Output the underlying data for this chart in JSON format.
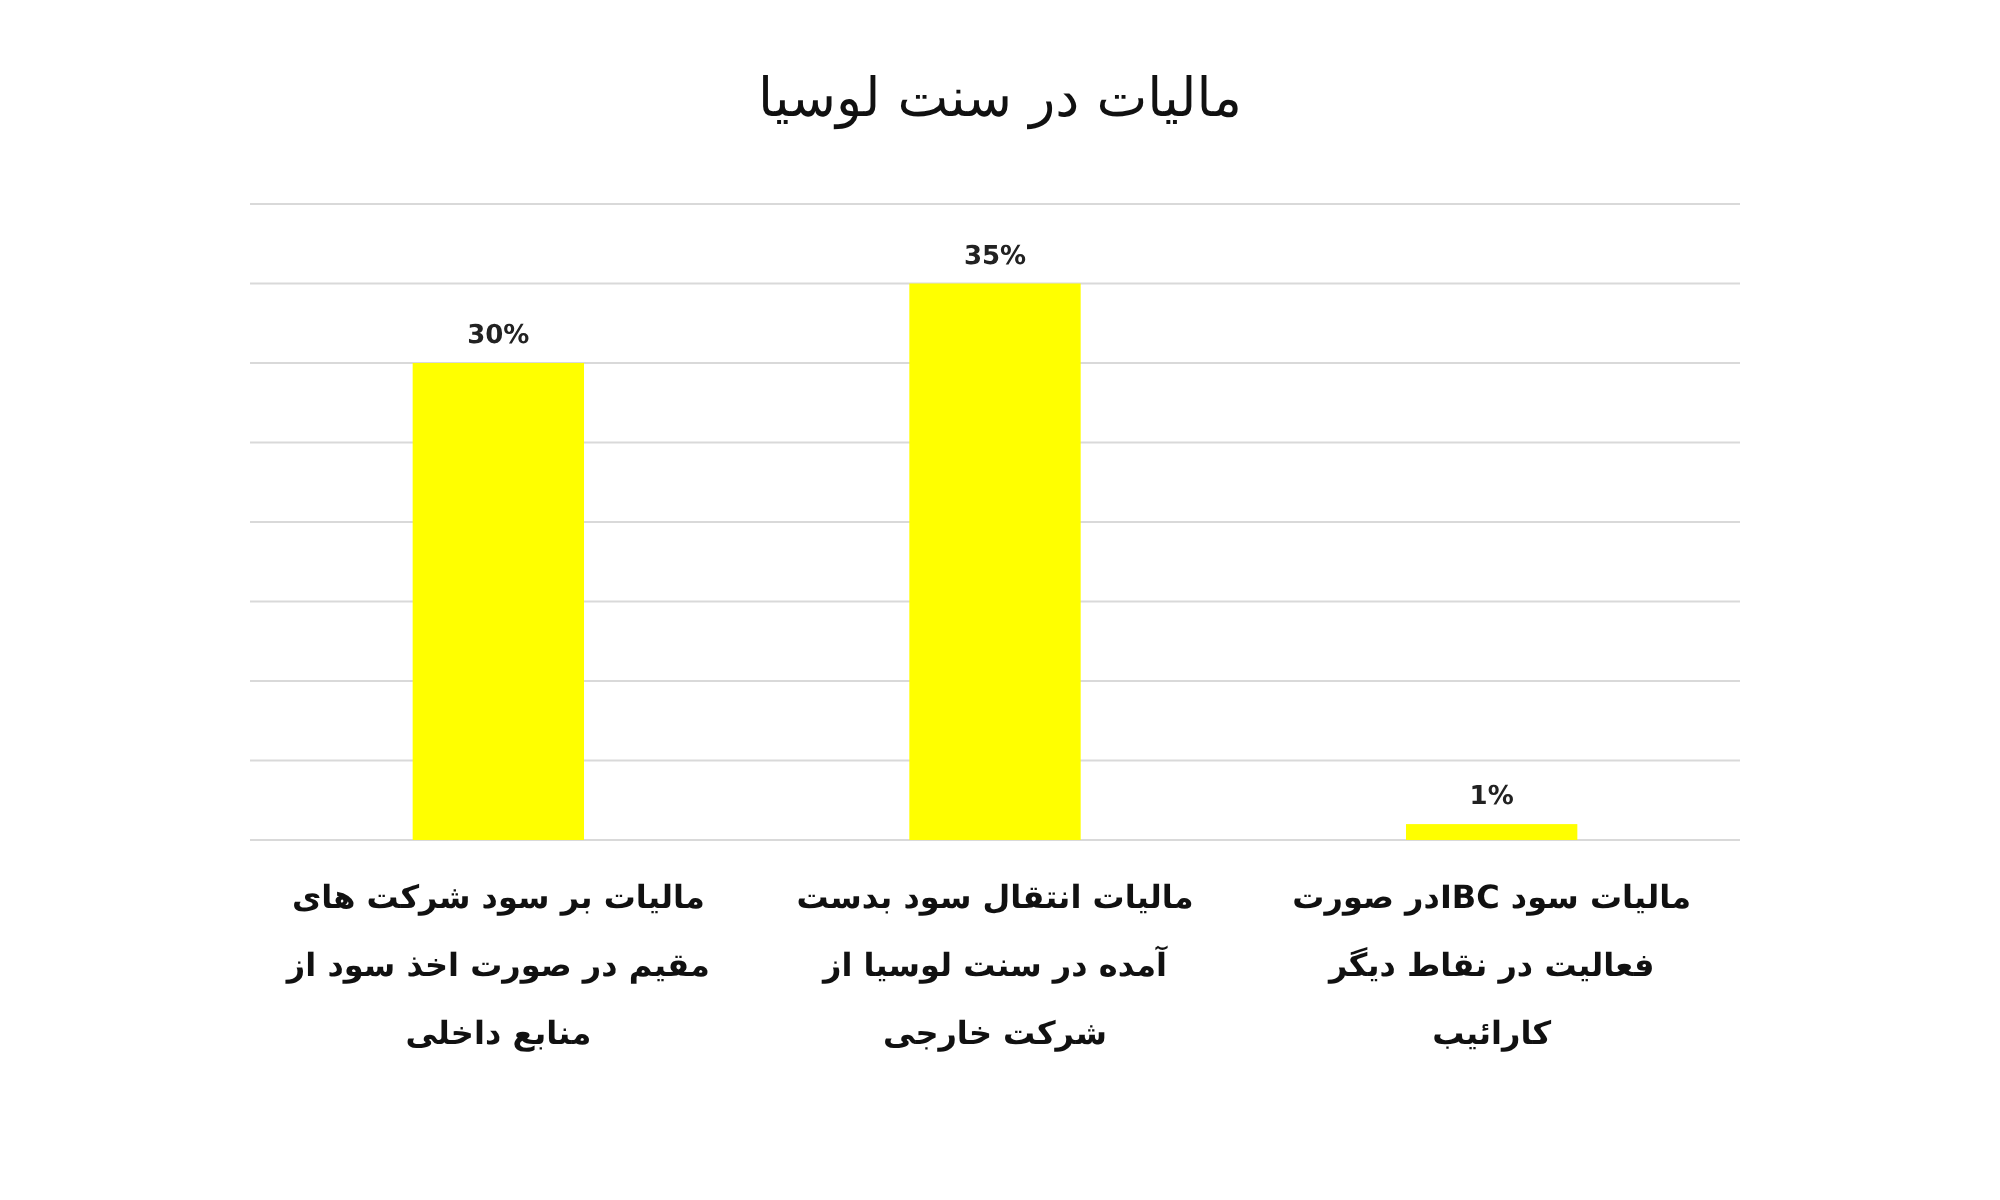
{
  "chart_data": {
    "type": "bar",
    "title": "مالیات در سنت لوسیا",
    "categories": [
      "مالیات بر سود شرکت های مقیم در صورت اخذ سود از منابع داخلی",
      "مالیات انتقال سود بدست آمده در سنت لوسیا از شرکت خارجی",
      "مالیات سود IBCدر صورت فعالیت در نقاط دیگر کارائیب"
    ],
    "values": [
      30,
      35,
      1
    ],
    "value_labels": [
      "30%",
      "35%",
      "1%"
    ],
    "color": "#ffff00",
    "ylim": [
      0,
      40
    ],
    "yticks": [
      {
        "value": 0,
        "label": null
      },
      {
        "value": 5,
        "label": null
      },
      {
        "value": 10,
        "label": null
      },
      {
        "value": 15,
        "label": null
      },
      {
        "value": 20,
        "label": null
      },
      {
        "value": 25,
        "label": null
      },
      {
        "value": 30,
        "label": null
      },
      {
        "value": 35,
        "label": null
      },
      {
        "value": 40,
        "label": null
      }
    ],
    "tick_labels": "x",
    "grid": "y"
  }
}
